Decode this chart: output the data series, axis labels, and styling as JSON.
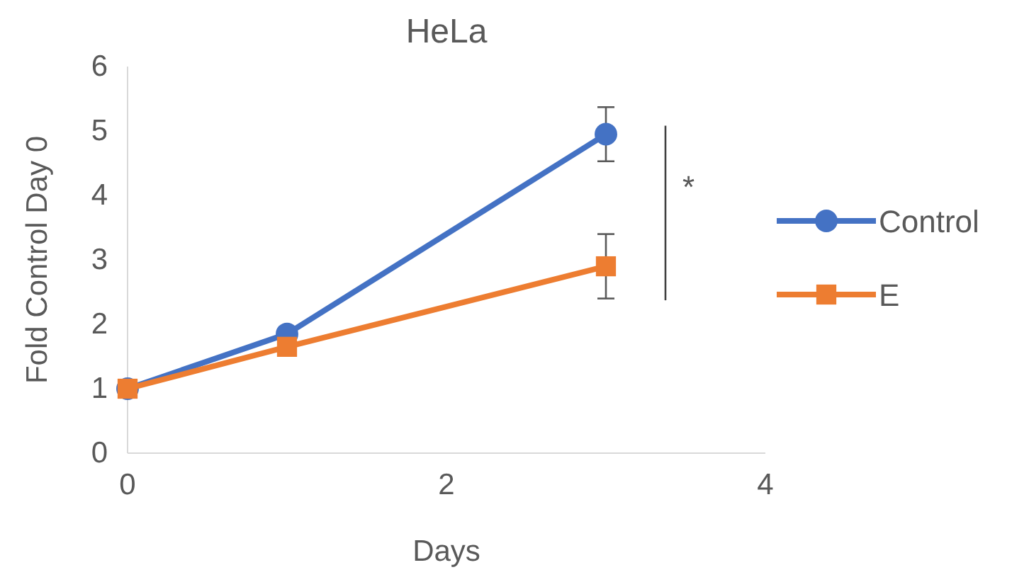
{
  "chart_data": {
    "type": "line",
    "title": "HeLa",
    "xlabel": "Days",
    "ylabel": "Fold Control Day 0",
    "x": [
      0,
      1,
      3
    ],
    "series": [
      {
        "name": "Control",
        "color": "#4472c4",
        "values": [
          1,
          1.85,
          4.95
        ],
        "errors": [
          null,
          null,
          0.42
        ],
        "marker": "circle"
      },
      {
        "name": "E",
        "color": "#ed7d31",
        "values": [
          1,
          1.65,
          2.9
        ],
        "errors": [
          null,
          null,
          0.5
        ],
        "marker": "square"
      }
    ],
    "xlim": [
      0,
      4
    ],
    "xticks": [
      0,
      2,
      4
    ],
    "ylim": [
      0,
      6
    ],
    "yticks": [
      0,
      1,
      2,
      3,
      4,
      5,
      6
    ],
    "grid": false,
    "legend": "right",
    "line_style": "solid",
    "annotations": [
      "*"
    ]
  }
}
